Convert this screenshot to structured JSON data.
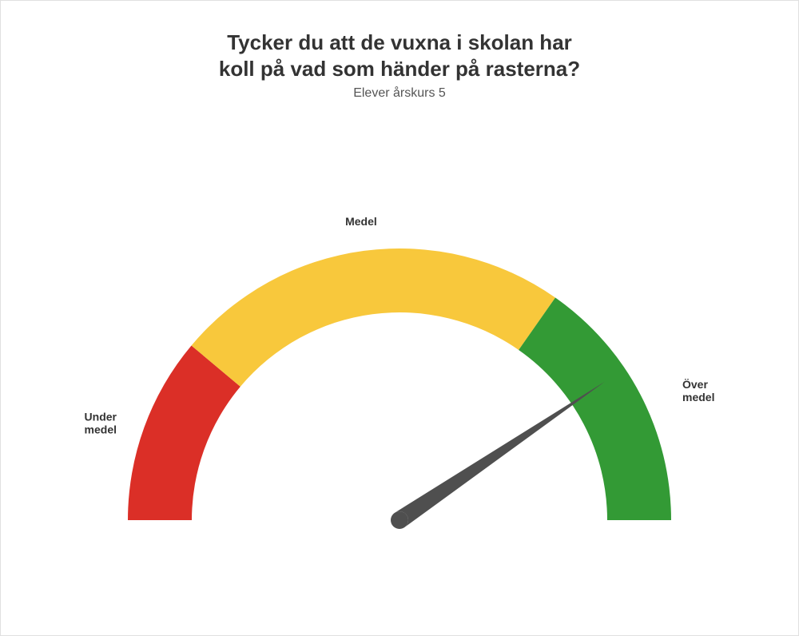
{
  "title_line1": "Tycker du att de vuxna i skolan har",
  "title_line2": "koll på vad som händer på rasterna?",
  "subtitle": "Elever årskurs 5",
  "gauge": {
    "type": "gauge",
    "outer_radius": 340,
    "inner_radius": 260,
    "segments": [
      {
        "start_deg": 180,
        "end_deg": 140,
        "color": "#db2f27",
        "label": "Under\nmedel"
      },
      {
        "start_deg": 140,
        "end_deg": 55,
        "color": "#f8c83c",
        "label": "Medel"
      },
      {
        "start_deg": 55,
        "end_deg": 0,
        "color": "#339a35",
        "label": "Över\nmedel"
      }
    ],
    "needle": {
      "angle_deg": 34,
      "length": 310,
      "base_width": 22,
      "color": "#4f4f4f"
    },
    "label_fontsize": 14,
    "label_fontweight": "bold",
    "title_fontsize": 26,
    "subtitle_fontsize": 16,
    "background_color": "#ffffff",
    "border_color": "#e0e0e0"
  }
}
